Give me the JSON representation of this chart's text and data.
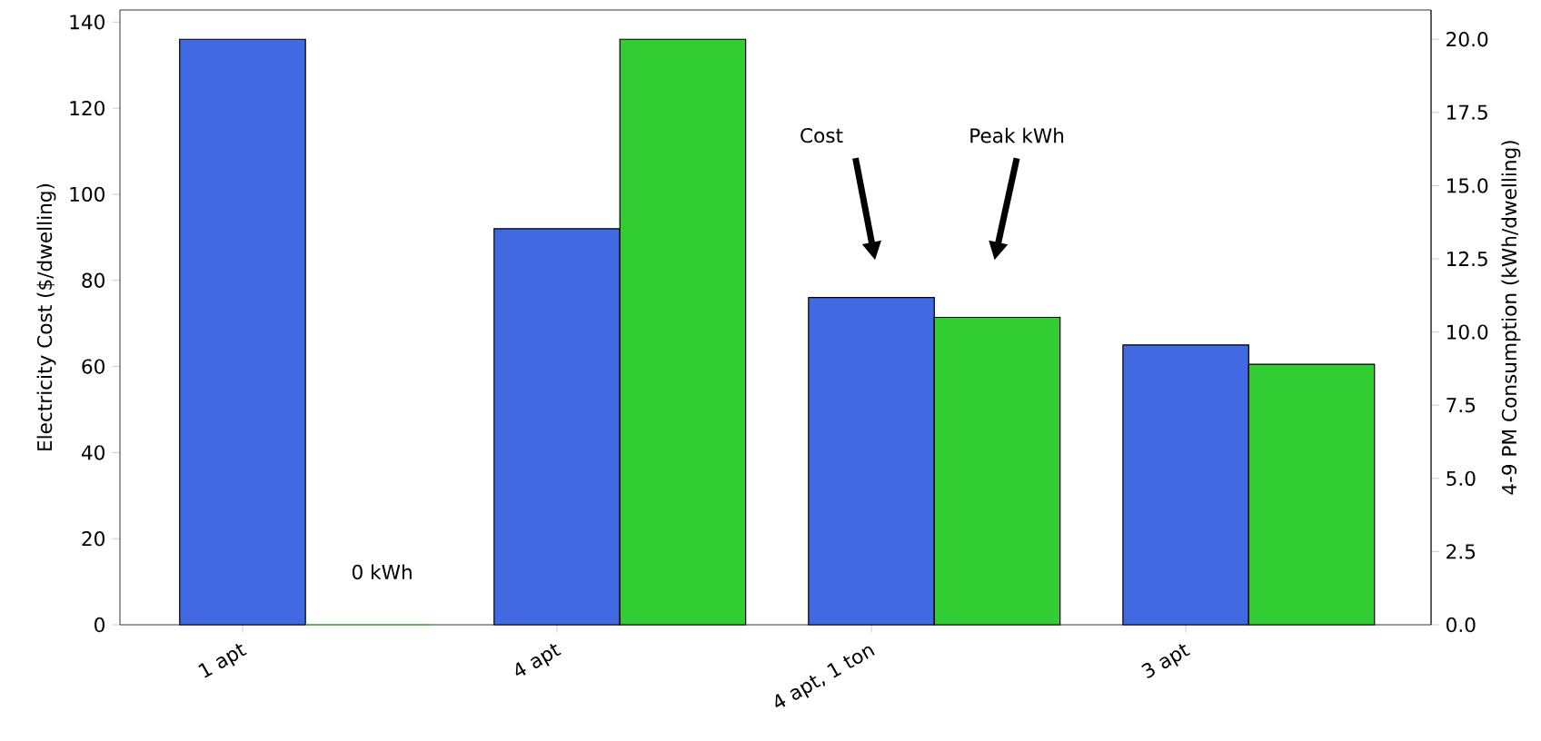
{
  "chart_data": {
    "type": "bar",
    "categories": [
      "1 apt",
      "4 apt",
      "4 apt, 1 ton",
      "3 apt"
    ],
    "series": [
      {
        "color": "#4169e1",
        "values": [
          136,
          92,
          76,
          65
        ]
      },
      {
        "color": "#32cd32",
        "values": [
          0,
          20.0,
          10.5,
          8.9
        ],
        "axis": "y2"
      }
    ],
    "ylabel": "Electricity Cost ($/dwelling)",
    "y2label": "4-9 PM Consumption (kWh/dwelling)",
    "ylim": [
      0,
      142.8
    ],
    "yticks": [
      0,
      20,
      40,
      60,
      80,
      100,
      120,
      140
    ],
    "y2lim": [
      0,
      21
    ],
    "y2ticks": [
      {
        "value": 0,
        "label": "0.0"
      },
      {
        "value": 2.5,
        "label": "2.5"
      },
      {
        "value": 5,
        "label": "5.0"
      },
      {
        "value": 7.5,
        "label": "7.5"
      },
      {
        "value": 10,
        "label": "10.0"
      },
      {
        "value": 12.5,
        "label": "12.5"
      },
      {
        "value": 15,
        "label": "15.0"
      },
      {
        "value": 17.5,
        "label": "17.5"
      },
      {
        "value": 20,
        "label": "20.0"
      }
    ],
    "annotations": [
      "0 kWh",
      "Cost",
      "Peak kWh"
    ],
    "grid": false
  }
}
